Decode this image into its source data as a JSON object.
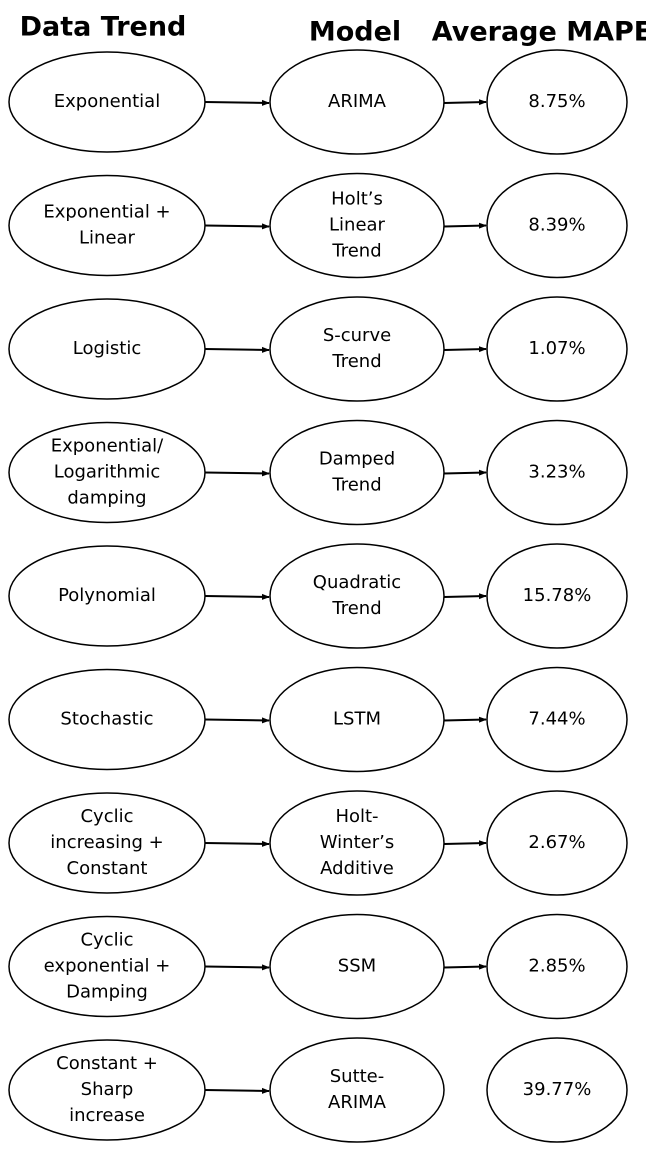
{
  "header": {
    "trend": "Data Trend",
    "model": "Model",
    "mape": "Average MAPE"
  },
  "rows": [
    {
      "trend": [
        "Exponential"
      ],
      "model": [
        "ARIMA"
      ],
      "mape": "8.75%",
      "arrow_to_mape": true
    },
    {
      "trend": [
        "Exponential +",
        "Linear"
      ],
      "model": [
        "Holt’s",
        "Linear",
        "Trend"
      ],
      "mape": "8.39%",
      "arrow_to_mape": true
    },
    {
      "trend": [
        "Logistic"
      ],
      "model": [
        "S-curve",
        "Trend"
      ],
      "mape": "1.07%",
      "arrow_to_mape": true
    },
    {
      "trend": [
        "Exponential/",
        "Logarithmic",
        "damping"
      ],
      "model": [
        "Damped",
        "Trend"
      ],
      "mape": "3.23%",
      "arrow_to_mape": true
    },
    {
      "trend": [
        "Polynomial"
      ],
      "model": [
        "Quadratic",
        "Trend"
      ],
      "mape": "15.78%",
      "arrow_to_mape": true
    },
    {
      "trend": [
        "Stochastic"
      ],
      "model": [
        "LSTM"
      ],
      "mape": "7.44%",
      "arrow_to_mape": true
    },
    {
      "trend": [
        "Cyclic",
        "increasing +",
        "Constant"
      ],
      "model": [
        "Holt-",
        "Winter’s",
        "Additive"
      ],
      "mape": "2.67%",
      "arrow_to_mape": true
    },
    {
      "trend": [
        "Cyclic",
        "exponential +",
        "Damping"
      ],
      "model": [
        "SSM"
      ],
      "mape": "2.85%",
      "arrow_to_mape": true
    },
    {
      "trend": [
        "Constant +",
        "Sharp",
        "increase"
      ],
      "model": [
        "Sutte-",
        "ARIMA"
      ],
      "mape": "39.77%",
      "arrow_to_mape": false
    }
  ]
}
